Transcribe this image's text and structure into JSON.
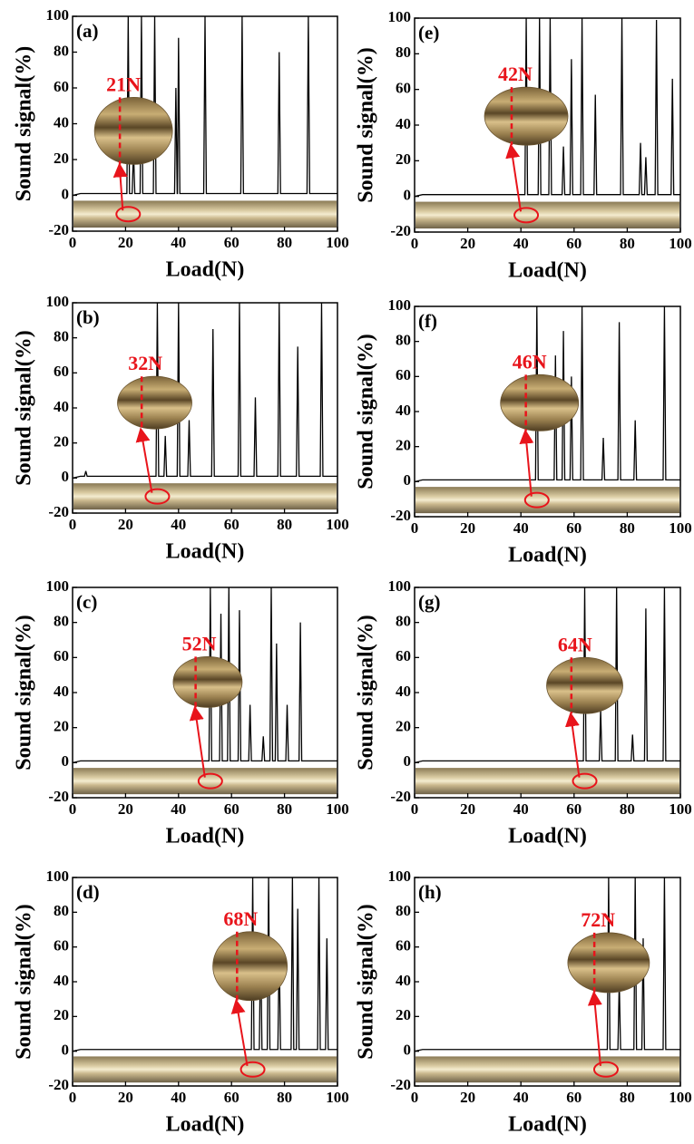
{
  "chart_data": [
    {
      "type": "line",
      "panel_label": "(a)",
      "annotation": "21N",
      "critical_load": 21,
      "xlabel": "Load(N)",
      "ylabel": "Sound signal(%)",
      "color": "#000000",
      "annotation_color": "#e8141b",
      "xlim": [
        0,
        100
      ],
      "ylim": [
        -20,
        100
      ],
      "xticks": [
        0,
        20,
        40,
        60,
        80,
        100
      ],
      "yticks": [
        -20,
        0,
        20,
        40,
        60,
        80,
        100
      ],
      "x": [
        0,
        3,
        20.5,
        21,
        21.5,
        22.5,
        23,
        23.5,
        25.5,
        26,
        26.5,
        30.5,
        31,
        31.5,
        38.5,
        39,
        39.5,
        39.6,
        40,
        40.5,
        49.5,
        50,
        50.5,
        63.5,
        64,
        64.5,
        77.5,
        78,
        78.5,
        88.5,
        89,
        89.5,
        100
      ],
      "values": [
        0,
        1,
        1,
        100,
        1,
        1,
        25,
        1,
        1,
        100,
        1,
        1,
        100,
        1,
        1,
        60,
        1,
        1,
        88,
        1,
        1,
        100,
        1,
        1,
        100,
        1,
        1,
        80,
        1,
        1,
        100,
        1,
        1
      ]
    },
    {
      "type": "line",
      "panel_label": "(b)",
      "annotation": "32N",
      "critical_load": 32,
      "xlabel": "Load(N)",
      "ylabel": "Sound signal(%)",
      "color": "#000000",
      "annotation_color": "#e8141b",
      "xlim": [
        0,
        100
      ],
      "ylim": [
        -20,
        100
      ],
      "xticks": [
        0,
        20,
        40,
        60,
        80,
        100
      ],
      "yticks": [
        -20,
        0,
        20,
        40,
        60,
        80,
        100
      ],
      "x": [
        0,
        3,
        4.5,
        5,
        5.5,
        31.5,
        32,
        32.5,
        34.5,
        35,
        35.5,
        39.5,
        40,
        40.5,
        43.5,
        44,
        44.5,
        52.5,
        53,
        53.5,
        62.5,
        63,
        63.5,
        68.5,
        69,
        69.5,
        77.5,
        78,
        78.5,
        84.5,
        85,
        85.5,
        93.5,
        94,
        94.5,
        100
      ],
      "values": [
        0,
        1,
        1,
        4,
        1,
        1,
        100,
        1,
        1,
        24,
        1,
        1,
        100,
        1,
        1,
        33,
        1,
        1,
        85,
        1,
        1,
        100,
        1,
        1,
        46,
        1,
        1,
        100,
        1,
        1,
        75,
        1,
        1,
        100,
        1,
        1
      ]
    },
    {
      "type": "line",
      "panel_label": "(c)",
      "annotation": "52N",
      "critical_load": 52,
      "xlabel": "Load(N)",
      "ylabel": "Sound signal(%)",
      "color": "#000000",
      "annotation_color": "#e8141b",
      "xlim": [
        0,
        100
      ],
      "ylim": [
        -20,
        100
      ],
      "xticks": [
        0,
        20,
        40,
        60,
        80,
        100
      ],
      "yticks": [
        -20,
        0,
        20,
        40,
        60,
        80,
        100
      ],
      "x": [
        0,
        3,
        51.5,
        52,
        52.5,
        55.5,
        56,
        56.5,
        58.5,
        59,
        59.5,
        62.5,
        63,
        63.5,
        66.5,
        67,
        67.5,
        71.5,
        72,
        72.5,
        74.5,
        75,
        75.5,
        76.5,
        77,
        77.5,
        80.5,
        81,
        81.5,
        85.5,
        86,
        86.5,
        100
      ],
      "values": [
        0,
        1,
        1,
        100,
        1,
        1,
        85,
        1,
        1,
        100,
        1,
        1,
        87,
        1,
        1,
        33,
        1,
        1,
        15,
        1,
        1,
        100,
        1,
        1,
        68,
        1,
        1,
        33,
        1,
        1,
        80,
        1,
        1
      ]
    },
    {
      "type": "line",
      "panel_label": "(d)",
      "annotation": "68N",
      "critical_load": 68,
      "xlabel": "Load(N)",
      "ylabel": "Sound signal(%)",
      "color": "#000000",
      "annotation_color": "#e8141b",
      "xlim": [
        0,
        100
      ],
      "ylim": [
        -20,
        100
      ],
      "xticks": [
        0,
        20,
        40,
        60,
        80,
        100
      ],
      "yticks": [
        -20,
        0,
        20,
        40,
        60,
        80,
        100
      ],
      "x": [
        0,
        3,
        67.5,
        68,
        68.5,
        70.5,
        71,
        71.5,
        73.5,
        74,
        74.5,
        77.5,
        78,
        78.5,
        82.5,
        83,
        83.5,
        84.5,
        85,
        85.5,
        92.5,
        93,
        93.5,
        95.5,
        96,
        96.5,
        100
      ],
      "values": [
        0,
        1,
        1,
        100,
        1,
        1,
        66,
        1,
        1,
        100,
        1,
        1,
        60,
        1,
        1,
        100,
        1,
        1,
        82,
        1,
        1,
        100,
        1,
        1,
        65,
        1,
        1
      ]
    },
    {
      "type": "line",
      "panel_label": "(e)",
      "annotation": "42N",
      "critical_load": 42,
      "xlabel": "Load(N)",
      "ylabel": "Sound signal(%)",
      "color": "#000000",
      "annotation_color": "#e8141b",
      "xlim": [
        0,
        100
      ],
      "ylim": [
        -20,
        100
      ],
      "xticks": [
        0,
        20,
        40,
        60,
        80,
        100
      ],
      "yticks": [
        -20,
        0,
        20,
        40,
        60,
        80,
        100
      ],
      "x": [
        0,
        3,
        41.5,
        42,
        42.5,
        46.5,
        47,
        47.5,
        50.5,
        51,
        51.5,
        55.5,
        56,
        56.5,
        58.5,
        59,
        59.5,
        62.5,
        63,
        63.5,
        67.5,
        68,
        68.5,
        77.5,
        78,
        78.5,
        84.5,
        85,
        85.5,
        86.5,
        87,
        87.5,
        90.5,
        91,
        91.5,
        96.5,
        97,
        97.5,
        100
      ],
      "values": [
        0,
        1,
        1,
        100,
        1,
        1,
        100,
        1,
        1,
        100,
        1,
        1,
        28,
        1,
        1,
        77,
        1,
        1,
        100,
        1,
        1,
        57,
        1,
        1,
        100,
        1,
        1,
        30,
        1,
        1,
        22,
        1,
        1,
        99,
        1,
        1,
        66,
        1,
        1
      ]
    },
    {
      "type": "line",
      "panel_label": "(f)",
      "annotation": "46N",
      "critical_load": 46,
      "xlabel": "Load(N)",
      "ylabel": "Sound signal(%)",
      "color": "#000000",
      "annotation_color": "#e8141b",
      "xlim": [
        0,
        100
      ],
      "ylim": [
        -20,
        100
      ],
      "xticks": [
        0,
        20,
        40,
        60,
        80,
        100
      ],
      "yticks": [
        -20,
        0,
        20,
        40,
        60,
        80,
        100
      ],
      "x": [
        0,
        3,
        45.5,
        46,
        46.5,
        52.5,
        53,
        53.5,
        55.5,
        56,
        56.5,
        58.5,
        59,
        59.5,
        62.5,
        63,
        63.5,
        70.5,
        71,
        71.5,
        76.5,
        77,
        77.5,
        82.5,
        83,
        83.5,
        93.5,
        94,
        94.5,
        100
      ],
      "values": [
        0,
        1,
        1,
        100,
        1,
        1,
        72,
        1,
        1,
        86,
        1,
        1,
        60,
        1,
        1,
        100,
        1,
        1,
        25,
        1,
        1,
        91,
        1,
        1,
        35,
        1,
        1,
        100,
        1,
        1
      ]
    },
    {
      "type": "line",
      "panel_label": "(g)",
      "annotation": "64N",
      "critical_load": 64,
      "xlabel": "Load(N)",
      "ylabel": "Sound signal(%)",
      "color": "#000000",
      "annotation_color": "#e8141b",
      "xlim": [
        0,
        100
      ],
      "ylim": [
        -20,
        100
      ],
      "xticks": [
        0,
        20,
        40,
        60,
        80,
        100
      ],
      "yticks": [
        -20,
        0,
        20,
        40,
        60,
        80,
        100
      ],
      "x": [
        0,
        3,
        63.5,
        64,
        64.5,
        69.5,
        70,
        70.5,
        75.5,
        76,
        76.5,
        81.5,
        82,
        82.5,
        86.5,
        87,
        87.5,
        93.5,
        94,
        94.5,
        100
      ],
      "values": [
        0,
        1,
        1,
        100,
        1,
        1,
        30,
        1,
        1,
        100,
        1,
        1,
        16,
        1,
        1,
        88,
        1,
        1,
        100,
        1,
        1
      ]
    },
    {
      "type": "line",
      "panel_label": "(h)",
      "annotation": "72N",
      "critical_load": 72,
      "xlabel": "Load(N)",
      "ylabel": "Sound signal(%)",
      "color": "#000000",
      "annotation_color": "#e8141b",
      "xlim": [
        0,
        100
      ],
      "ylim": [
        -20,
        100
      ],
      "xticks": [
        0,
        20,
        40,
        60,
        80,
        100
      ],
      "yticks": [
        -20,
        0,
        20,
        40,
        60,
        80,
        100
      ],
      "x": [
        0,
        3,
        72.5,
        73,
        73.5,
        76.5,
        77,
        77.5,
        82.5,
        83,
        83.5,
        85.5,
        86,
        86.5,
        93.5,
        94,
        94.5,
        100
      ],
      "values": [
        0,
        1,
        1,
        100,
        1,
        1,
        40,
        1,
        1,
        100,
        1,
        1,
        65,
        1,
        1,
        100,
        1,
        1
      ]
    }
  ]
}
